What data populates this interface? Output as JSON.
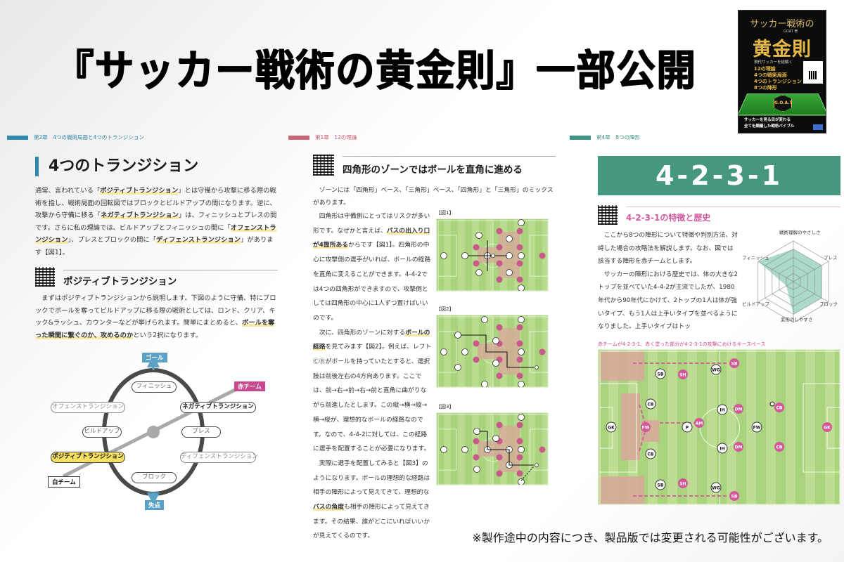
{
  "headline": "『サッカー戦術の黄金則』一部公開",
  "book_cover": {
    "title_top": "サッカー戦術の",
    "author": "GOAT 著",
    "title_main": "黄金則",
    "subtitle_lines": [
      "現代サッカーを紐解く",
      "12の理論",
      "4つの戦術局面",
      "4つのトランジション",
      "8つの陣形"
    ],
    "badge": "G.O.A.T",
    "footer_lines": [
      "サッカーを見る目が変わる",
      "全てを網羅した戦術バイブル"
    ]
  },
  "pages": [
    {
      "chapter": "第2章　4つの戦術局面と4つのトランジション",
      "accent": "#2f87aa",
      "title": "4つのトランジション",
      "intro": [
        {
          "t": "通常、言われている「",
          "b": false
        },
        {
          "t": "ポジティブトランジション",
          "b": true
        },
        {
          "t": "」とは守備から攻撃に移る際の戦術を指し、戦術局面の回転図ではブロックとビルドアップの間になります。逆に、攻撃から守備に移る「",
          "b": false
        },
        {
          "t": "ネガティブトランジション",
          "b": true
        },
        {
          "t": "」は、フィニッシュとプレスの間です。さらに私の理論では、ビルドアップとフィニッシュの間に「",
          "b": false
        },
        {
          "t": "オフェンストランジション",
          "b": true
        },
        {
          "t": "」、プレスとブロックの間に「",
          "b": false
        },
        {
          "t": "ディフェンストランジション",
          "b": true
        },
        {
          "t": "」があります【図1】。",
          "b": false
        }
      ],
      "section_title": "ポジティブトランジション",
      "section_body": [
        {
          "t": "まずはポジティブトランジションから説明します。下図のように守備、特にブロックでボールを奪ってビルドアップに移る際の戦術としては、ロンド、クリア、キック&ラッシュ、カウンターなどが挙げられます。簡単にまとめると、",
          "b": false
        },
        {
          "t": "ボールを奪った瞬間に繋ぐのか、攻めるのか",
          "b": true
        },
        {
          "t": "という2択になります。",
          "b": false
        }
      ],
      "diagram": {
        "goal": "ゴール",
        "lose": "失点",
        "finish": "フィニッシュ",
        "build_up": "ビルドアップ",
        "press": "プレス",
        "block": "ブロック",
        "offense_transition": "オフェンストランジション",
        "negative_transition": "ネガティブトランジション",
        "positive_transition": "ポジティブトランジション",
        "defense_transition": "ディフェンストランジション",
        "red_team": "赤チーム",
        "white_team": "白チーム"
      }
    },
    {
      "chapter": "第1章　12の理論",
      "accent": "#c96874",
      "title": "四角形のゾーンではボールを直角に進める",
      "lead": "ゾーンには「四角形」ベース、「三角形」ベース、「四角形」と「三角形」のミックスがあります。",
      "paragraphs": [
        [
          {
            "t": "四角形は守備側にとってはリスクが多い形です。なぜかと言えば、",
            "b": false
          },
          {
            "t": "パスの出入り口が4箇所ある",
            "b": true
          },
          {
            "t": "からです【図1】。四角形の中心に攻撃側の選手がいれば、ボールの経路を直角に変えることができます。4-4-2では4つの四角形ができますので、攻撃側としては四角形の中心に1人ずつ置けばいいのです。",
            "b": false
          }
        ],
        [
          {
            "t": "次に、四角形のゾーンに対する",
            "b": false
          },
          {
            "t": "ボールの経路",
            "b": true
          },
          {
            "t": "を見てみます【図2】。例えば、レフトⒸⒷがボールを持っていたとすると、選択肢は前後左右の4方向あります。ここでは、前→右→前→右→前と直角に曲がりながら前進したとします。この縦→横→縦→横→縦が、理想的なボールの経路なのです。なので、4-4-2に対しては、この経路に選手を配置することが必要になります。",
            "b": false
          }
        ],
        [
          {
            "t": "実際に選手を配置してみると【図3】のようになります。ボールの理想的な経路は相手の陣形によって見えてきて、理想的な",
            "b": false
          },
          {
            "t": "パスの角度",
            "b": true
          },
          {
            "t": "も相手の陣形によって見えてきます。その結果、誰がどこにいればいいかが見えてくるのです。",
            "b": false
          }
        ]
      ],
      "figures": [
        "【図1】",
        "【図2】",
        "【図3】"
      ]
    },
    {
      "chapter": "第4章　8つの陣形",
      "accent": "#45977f",
      "banner": "4-2-3-1",
      "section_title": "4-2-3-1の特徴と歴史",
      "paragraphs": [
        "ここから8つの陣形について特徴や判別方法、対峙した場合の攻略法を解説します。なお、図では該当する陣形を赤チームとします。",
        "サッカーの陣形における歴史では、体の大きな2トップを並べていた4-4-2が主流でしたが、1980年代から90年代にかけて、2トップの1人は体が強いタイプ、もう1人は上手いタイプを並べるようになりました。上手いタイプはトッ"
      ],
      "pitch_caption": "赤チームが4-2-3-1、赤く塗った部分が4-2-3-1の攻撃におけるキースペース",
      "white_players": [
        "GK",
        "CB",
        "CB",
        "SB",
        "SB",
        "WG",
        "WG",
        "IH",
        "IH",
        "P",
        "FW"
      ],
      "red_players": [
        "GK",
        "CB",
        "CB",
        "SB",
        "SB",
        "DM",
        "DM",
        "SH",
        "SH",
        "AM",
        "FW"
      ]
    }
  ],
  "chart_data": {
    "type": "radar",
    "title": "4-2-3-1",
    "categories": [
      "戦術理解のやさしさ",
      "プレス",
      "ブロック",
      "変形のしやすさ",
      "ビルドアップ",
      "フィニッシュ"
    ],
    "values": [
      4,
      4,
      4,
      4,
      1,
      5
    ],
    "max": 5,
    "levels": 5,
    "fill_color": "#8fcdb9"
  },
  "footnote": "※製作途中の内容につき、製品版では変更される可能性がございます。"
}
